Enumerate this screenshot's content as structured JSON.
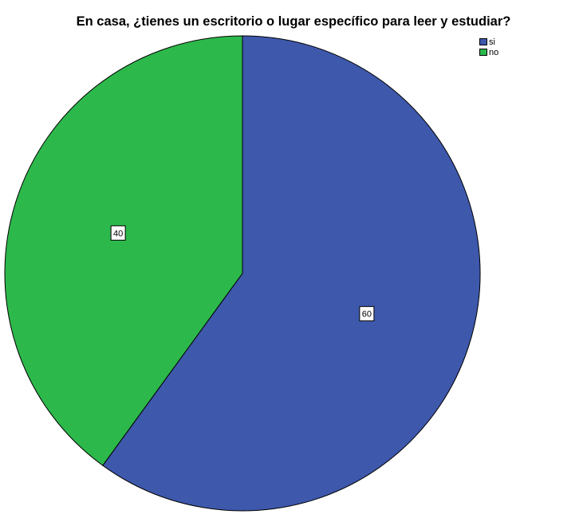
{
  "chart_data": {
    "type": "pie",
    "title": "En casa, ¿tienes un escritorio o lugar específico para leer y estudiar?",
    "categories": [
      "si",
      "no"
    ],
    "values": [
      60,
      40
    ],
    "data_labels": [
      "60",
      "40"
    ],
    "colors": [
      "#3e58ac",
      "#2db84b"
    ],
    "legend_position": "top-right"
  }
}
